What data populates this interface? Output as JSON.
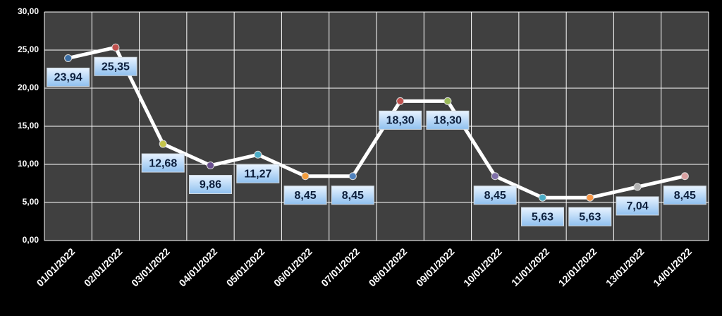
{
  "chart_data": {
    "type": "line",
    "categories": [
      "01/01/2022",
      "02/01/2022",
      "03/01/2022",
      "04/01/2022",
      "05/01/2022",
      "06/01/2022",
      "07/01/2022",
      "08/01/2022",
      "09/01/2022",
      "10/01/2022",
      "11/01/2022",
      "12/01/2022",
      "13/01/2022",
      "14/01/2022"
    ],
    "values": [
      23.94,
      25.35,
      12.68,
      9.86,
      11.27,
      8.45,
      8.45,
      18.3,
      18.3,
      8.45,
      5.63,
      5.63,
      7.04,
      8.45
    ],
    "value_labels": [
      "23,94",
      "25,35",
      "12,68",
      "9,86",
      "11,27",
      "8,45",
      "8,45",
      "18,30",
      "18,30",
      "8,45",
      "5,63",
      "5,63",
      "7,04",
      "8,45"
    ],
    "color": "#ffffff",
    "marker_colors": [
      "#3a6ea5",
      "#c0504d",
      "#c4c44a",
      "#6a4f8f",
      "#4bacc6",
      "#f39c3c",
      "#4f81bd",
      "#c0504d",
      "#9bbb59",
      "#7f6fa8",
      "#4bacc6",
      "#f79646",
      "#b0b0b0",
      "#d9a0a0"
    ],
    "ylim": [
      0,
      30
    ],
    "yticks": [
      {
        "value": 0,
        "label": "0,00"
      },
      {
        "value": 5,
        "label": "5,00"
      },
      {
        "value": 10,
        "label": "10,00"
      },
      {
        "value": 15,
        "label": "15,00"
      },
      {
        "value": 20,
        "label": "20,00"
      },
      {
        "value": 25,
        "label": "25,00"
      },
      {
        "value": 30,
        "label": "30,00"
      }
    ],
    "grid": true
  }
}
